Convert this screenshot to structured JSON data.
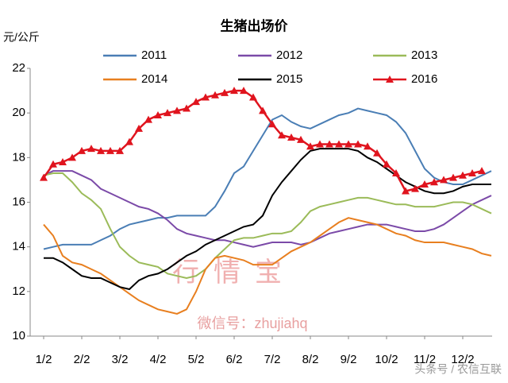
{
  "chart_data": {
    "type": "line",
    "title": "生猪出场价",
    "y_axis_label": "元/公斤",
    "watermark": [
      "行情宝",
      "微信号：zhujiahq"
    ],
    "credit": "头条号 / 农信互联",
    "categories": [
      "1/2",
      null,
      null,
      null,
      "2/2",
      null,
      null,
      null,
      "3/2",
      null,
      null,
      null,
      "4/2",
      null,
      null,
      null,
      "5/2",
      null,
      null,
      null,
      "6/2",
      null,
      null,
      null,
      "7/2",
      null,
      null,
      null,
      "8/2",
      null,
      null,
      null,
      "9/2",
      null,
      null,
      null,
      "10/2",
      null,
      null,
      null,
      "11/2",
      null,
      null,
      null,
      "12/2",
      null,
      null,
      null
    ],
    "ylim": [
      10,
      22
    ],
    "yticks": [
      10,
      12,
      14,
      16,
      18,
      20,
      22
    ],
    "grid": false,
    "series": [
      {
        "name": "2011",
        "color": "#4a7eb5",
        "values": [
          13.9,
          14.0,
          14.1,
          14.1,
          14.1,
          14.1,
          14.3,
          14.5,
          14.8,
          15.0,
          15.1,
          15.2,
          15.3,
          15.3,
          15.4,
          15.4,
          15.4,
          15.4,
          15.8,
          16.5,
          17.3,
          17.6,
          18.3,
          19.0,
          19.7,
          19.9,
          19.6,
          19.4,
          19.3,
          19.5,
          19.7,
          19.9,
          20.0,
          20.2,
          20.1,
          20.0,
          19.9,
          19.6,
          19.1,
          18.3,
          17.5,
          17.1,
          16.9,
          16.8,
          16.8,
          17.0,
          17.2,
          17.4
        ]
      },
      {
        "name": "2012",
        "color": "#7b4aa8",
        "values": [
          17.2,
          17.4,
          17.4,
          17.4,
          17.2,
          17.0,
          16.6,
          16.4,
          16.2,
          16.0,
          15.8,
          15.7,
          15.5,
          15.2,
          14.8,
          14.6,
          14.5,
          14.4,
          14.3,
          14.3,
          14.2,
          14.1,
          14.0,
          14.1,
          14.2,
          14.2,
          14.2,
          14.1,
          14.2,
          14.4,
          14.6,
          14.7,
          14.8,
          14.9,
          15.0,
          15.0,
          15.0,
          14.9,
          14.8,
          14.7,
          14.7,
          14.8,
          15.0,
          15.3,
          15.6,
          15.9,
          16.1,
          16.3
        ]
      },
      {
        "name": "2013",
        "color": "#9bbb59",
        "values": [
          17.2,
          17.3,
          17.3,
          16.9,
          16.4,
          16.1,
          15.7,
          14.8,
          14.0,
          13.6,
          13.3,
          13.2,
          13.1,
          12.8,
          12.7,
          12.6,
          12.7,
          13.0,
          13.5,
          13.9,
          14.3,
          14.4,
          14.4,
          14.5,
          14.6,
          14.6,
          14.7,
          15.1,
          15.6,
          15.8,
          15.9,
          16.0,
          16.1,
          16.2,
          16.2,
          16.1,
          16.0,
          15.9,
          15.9,
          15.8,
          15.8,
          15.8,
          15.9,
          16.0,
          16.0,
          15.9,
          15.7,
          15.5
        ]
      },
      {
        "name": "2014",
        "color": "#e87f1f",
        "values": [
          15.0,
          14.5,
          13.6,
          13.3,
          13.2,
          13.0,
          12.8,
          12.5,
          12.2,
          11.9,
          11.6,
          11.4,
          11.2,
          11.1,
          11.0,
          11.2,
          12.0,
          13.0,
          13.5,
          13.6,
          13.5,
          13.4,
          13.2,
          13.2,
          13.2,
          13.5,
          13.8,
          14.0,
          14.2,
          14.5,
          14.8,
          15.1,
          15.3,
          15.2,
          15.1,
          15.0,
          14.8,
          14.6,
          14.5,
          14.3,
          14.2,
          14.2,
          14.2,
          14.1,
          14.0,
          13.9,
          13.7,
          13.6
        ]
      },
      {
        "name": "2015",
        "color": "#000000",
        "values": [
          13.5,
          13.5,
          13.3,
          13.0,
          12.7,
          12.6,
          12.6,
          12.4,
          12.2,
          12.1,
          12.5,
          12.7,
          12.8,
          13.0,
          13.3,
          13.6,
          13.8,
          14.1,
          14.3,
          14.5,
          14.7,
          14.9,
          15.0,
          15.4,
          16.3,
          16.9,
          17.4,
          17.9,
          18.3,
          18.4,
          18.4,
          18.4,
          18.4,
          18.3,
          18.0,
          17.8,
          17.5,
          17.2,
          16.9,
          16.7,
          16.5,
          16.4,
          16.4,
          16.5,
          16.7,
          16.8,
          16.8,
          16.8
        ]
      },
      {
        "name": "2016",
        "color": "#e0141e",
        "marker": "triangle",
        "values": [
          17.1,
          17.7,
          17.8,
          18.0,
          18.3,
          18.4,
          18.3,
          18.3,
          18.3,
          18.7,
          19.3,
          19.7,
          19.9,
          20.0,
          20.1,
          20.2,
          20.5,
          20.7,
          20.8,
          20.9,
          21.0,
          21.0,
          20.7,
          20.1,
          19.5,
          19.0,
          18.9,
          18.8,
          18.5,
          18.6,
          18.6,
          18.6,
          18.6,
          18.6,
          18.5,
          18.2,
          17.7,
          17.3,
          16.5,
          16.6,
          16.8,
          16.9,
          17.0,
          17.1,
          17.2,
          17.3,
          17.4,
          null
        ]
      }
    ]
  }
}
